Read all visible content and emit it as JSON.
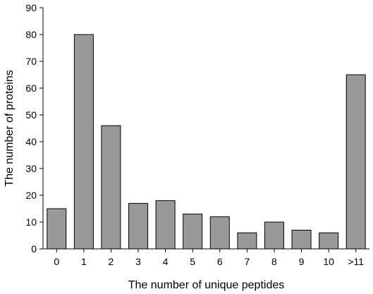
{
  "chart_data": {
    "type": "bar",
    "categories": [
      "0",
      "1",
      "2",
      "3",
      "4",
      "5",
      "6",
      "7",
      "8",
      "9",
      "10",
      ">11"
    ],
    "values": [
      15,
      80,
      46,
      17,
      18,
      13,
      12,
      6,
      10,
      7,
      6,
      65
    ],
    "title": "",
    "xlabel": "The number of unique peptides",
    "ylabel": "The number of proteins",
    "ylim": [
      0,
      90
    ],
    "yticks": [
      0,
      10,
      20,
      30,
      40,
      50,
      60,
      70,
      80,
      90
    ],
    "grid": false,
    "legend": "none",
    "bar_color": "#999999"
  }
}
